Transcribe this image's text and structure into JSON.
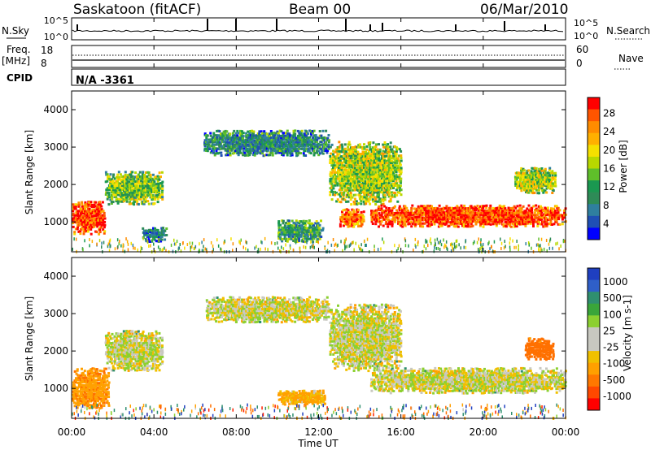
{
  "header": {
    "station": "Saskatoon (fitACF)",
    "beam": "Beam 00",
    "date": "06/Mar/2010"
  },
  "aux": {
    "nsky_label": "N.Sky",
    "nsky_ticks": [
      "10^5",
      "10^0"
    ],
    "nsky_right_ticks": [
      "10^5",
      "10^0"
    ],
    "nsearch_label": "N.Search",
    "freq_label": "Freq.",
    "freq_unit": "[MHz]",
    "freq_ticks": [
      "18",
      "8"
    ],
    "nave_ticks": [
      "60",
      "0"
    ],
    "nave_label": "Nave",
    "cpid_label": "CPID",
    "cpid_value": "N/A -3361"
  },
  "x_axis": {
    "label": "Time UT",
    "ticks": [
      "00:00",
      "04:00",
      "08:00",
      "12:00",
      "16:00",
      "20:00",
      "00:00"
    ]
  },
  "power_colorbar": {
    "label": "Power [dB]",
    "ticks": [
      "28",
      "24",
      "20",
      "16",
      "12",
      "8",
      "4"
    ],
    "colors": [
      "#ff0000",
      "#ff5500",
      "#ff8c00",
      "#ffb000",
      "#f5e000",
      "#b8d800",
      "#5fbf2a",
      "#1a9850",
      "#2e8b57",
      "#2f7f9f",
      "#1f4fb4",
      "#0000ff"
    ]
  },
  "velocity_colorbar": {
    "label": "Velocity [m s-1]",
    "ticks": [
      "1000",
      "500",
      "100",
      "25",
      "-25",
      "-100",
      "-500",
      "-1000"
    ],
    "colors": [
      "#1f3fc0",
      "#2f5fc8",
      "#2f8f6f",
      "#3aa53a",
      "#8cd030",
      "#c8c8c0",
      "#c8c8c0",
      "#f0c000",
      "#ffa000",
      "#ff7800",
      "#ff4800",
      "#ff0000"
    ]
  },
  "chart_data": [
    {
      "type": "heatmap",
      "title": "Power",
      "xlabel": "Time UT",
      "ylabel": "Slant Range [km]",
      "xlim": [
        0,
        24
      ],
      "ylim": [
        200,
        4500
      ],
      "yticks": [
        "1000",
        "2000",
        "3000",
        "4000"
      ],
      "features": [
        {
          "t": [
            0.0,
            1.6
          ],
          "r": [
            700,
            1600
          ],
          "dB": 28
        },
        {
          "t": [
            1.6,
            4.4
          ],
          "r": [
            1500,
            2400
          ],
          "dB": 14
        },
        {
          "t": [
            3.4,
            4.6
          ],
          "r": [
            500,
            900
          ],
          "dB": 6
        },
        {
          "t": [
            6.4,
            12.5
          ],
          "r": [
            2800,
            3500
          ],
          "dB": 8
        },
        {
          "t": [
            10.0,
            12.2
          ],
          "r": [
            500,
            1100
          ],
          "dB": 10
        },
        {
          "t": [
            13.0,
            14.2
          ],
          "r": [
            900,
            1400
          ],
          "dB": 26
        },
        {
          "t": [
            12.5,
            16.0
          ],
          "r": [
            1500,
            3200
          ],
          "dB": 16
        },
        {
          "t": [
            14.5,
            24.0
          ],
          "r": [
            900,
            1500
          ],
          "dB": 28
        },
        {
          "t": [
            21.5,
            23.5
          ],
          "r": [
            1800,
            2500
          ],
          "dB": 16
        }
      ]
    },
    {
      "type": "heatmap",
      "title": "Velocity",
      "xlabel": "Time UT",
      "ylabel": "Slant Range [km]",
      "xlim": [
        0,
        24
      ],
      "ylim": [
        200,
        4500
      ],
      "yticks": [
        "1000",
        "2000",
        "3000",
        "4000"
      ],
      "features": [
        {
          "t": [
            0.0,
            1.8
          ],
          "r": [
            500,
            1600
          ],
          "ms": -250
        },
        {
          "t": [
            1.6,
            4.4
          ],
          "r": [
            1500,
            2600
          ],
          "ms": 0
        },
        {
          "t": [
            6.5,
            12.5
          ],
          "r": [
            2800,
            3500
          ],
          "ms": 0
        },
        {
          "t": [
            10.0,
            12.3
          ],
          "r": [
            600,
            1000
          ],
          "ms": -100
        },
        {
          "t": [
            12.5,
            16.0
          ],
          "r": [
            1500,
            3300
          ],
          "ms": 0
        },
        {
          "t": [
            14.5,
            24.0
          ],
          "r": [
            900,
            1600
          ],
          "ms": 0
        },
        {
          "t": [
            22.0,
            23.4
          ],
          "r": [
            1800,
            2400
          ],
          "ms": -400
        }
      ]
    }
  ]
}
